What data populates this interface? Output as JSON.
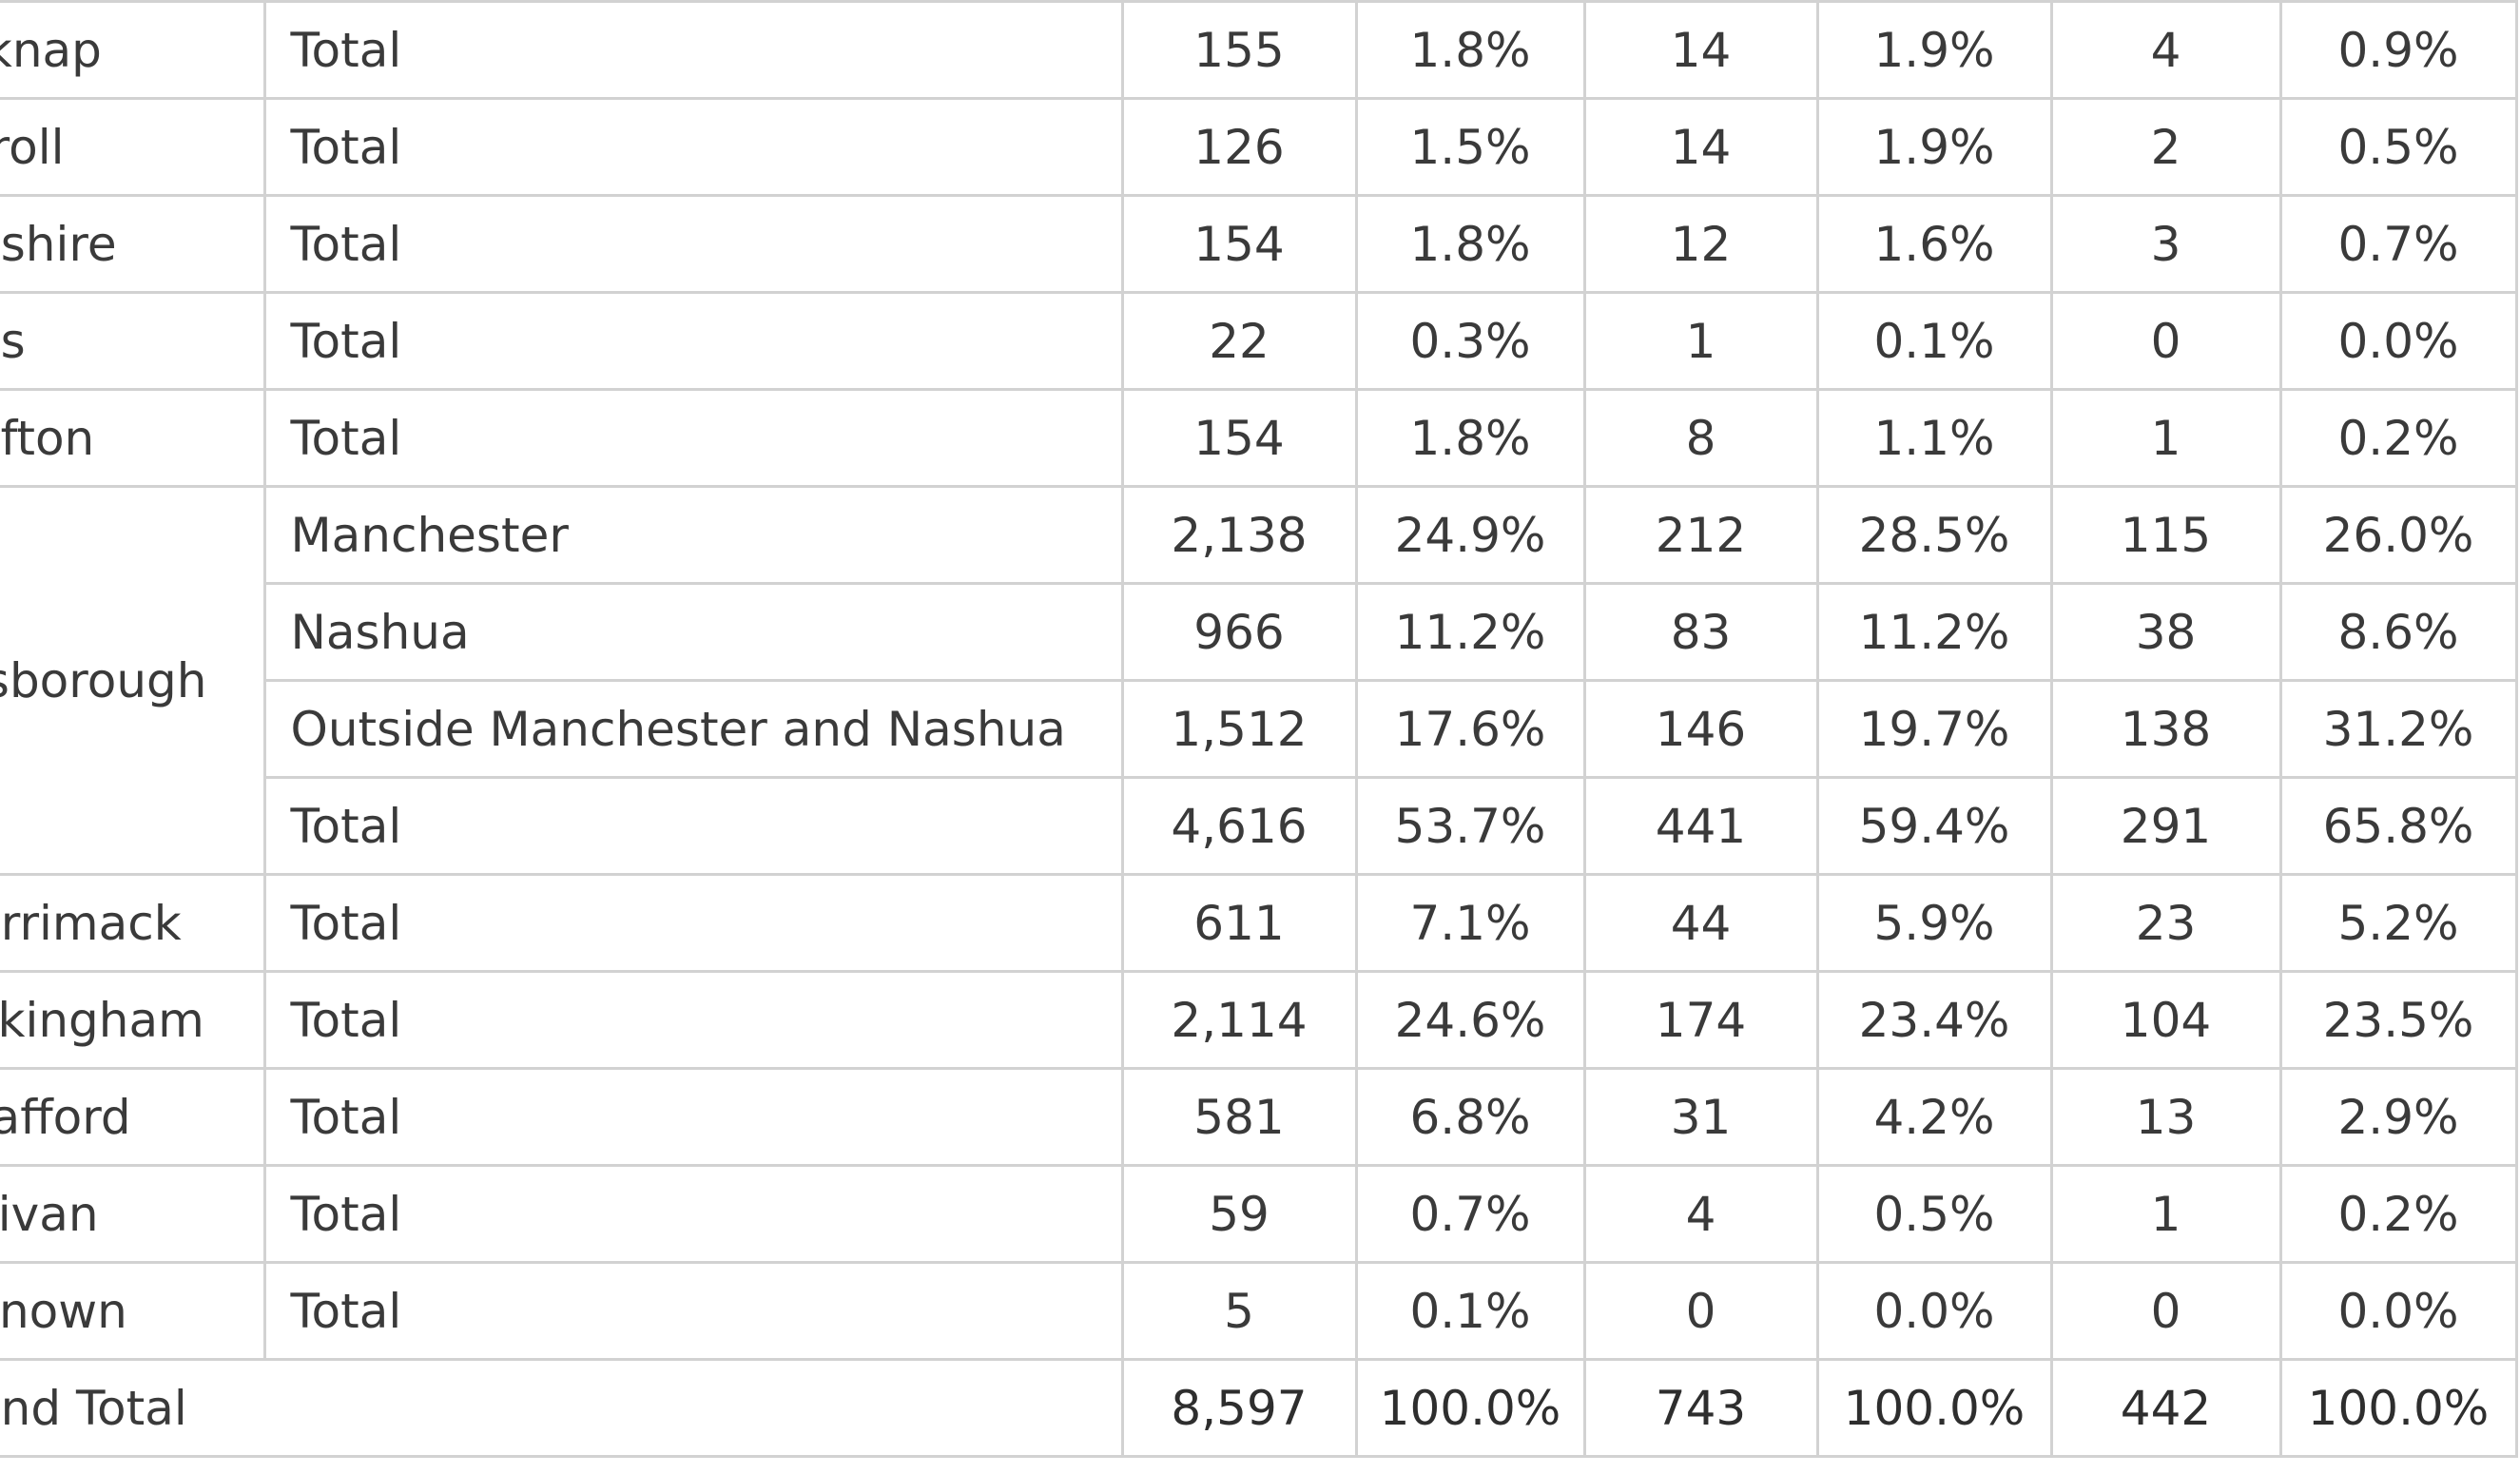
{
  "table": {
    "rows": [
      {
        "county": "lknap",
        "regions": [
          {
            "name": "Total",
            "values": [
              "155",
              "1.8%",
              "14",
              "1.9%",
              "4",
              "0.9%"
            ]
          }
        ]
      },
      {
        "county": "rroll",
        "regions": [
          {
            "name": "Total",
            "values": [
              "126",
              "1.5%",
              "14",
              "1.9%",
              "2",
              "0.5%"
            ]
          }
        ]
      },
      {
        "county": "eshire",
        "regions": [
          {
            "name": "Total",
            "values": [
              "154",
              "1.8%",
              "12",
              "1.6%",
              "3",
              "0.7%"
            ]
          }
        ]
      },
      {
        "county": "os",
        "regions": [
          {
            "name": "Total",
            "values": [
              "22",
              "0.3%",
              "1",
              "0.1%",
              "0",
              "0.0%"
            ]
          }
        ]
      },
      {
        "county": "afton",
        "regions": [
          {
            "name": "Total",
            "values": [
              "154",
              "1.8%",
              "8",
              "1.1%",
              "1",
              "0.2%"
            ]
          }
        ]
      },
      {
        "county": "lsborough",
        "regions": [
          {
            "name": "Manchester",
            "values": [
              "2,138",
              "24.9%",
              "212",
              "28.5%",
              "115",
              "26.0%"
            ]
          },
          {
            "name": "Nashua",
            "values": [
              "966",
              "11.2%",
              "83",
              "11.2%",
              "38",
              "8.6%"
            ]
          },
          {
            "name": "Outside Manchester and Nashua",
            "values": [
              "1,512",
              "17.6%",
              "146",
              "19.7%",
              "138",
              "31.2%"
            ]
          },
          {
            "name": "Total",
            "values": [
              "4,616",
              "53.7%",
              "441",
              "59.4%",
              "291",
              "65.8%"
            ]
          }
        ]
      },
      {
        "county": "errimack",
        "regions": [
          {
            "name": "Total",
            "values": [
              "611",
              "7.1%",
              "44",
              "5.9%",
              "23",
              "5.2%"
            ]
          }
        ]
      },
      {
        "county": "ckingham",
        "regions": [
          {
            "name": "Total",
            "values": [
              "2,114",
              "24.6%",
              "174",
              "23.4%",
              "104",
              "23.5%"
            ]
          }
        ]
      },
      {
        "county": "rafford",
        "regions": [
          {
            "name": "Total",
            "values": [
              "581",
              "6.8%",
              "31",
              "4.2%",
              "13",
              "2.9%"
            ]
          }
        ]
      },
      {
        "county": "llivan",
        "regions": [
          {
            "name": "Total",
            "values": [
              "59",
              "0.7%",
              "4",
              "0.5%",
              "1",
              "0.2%"
            ]
          }
        ]
      },
      {
        "county": "known",
        "regions": [
          {
            "name": "Total",
            "values": [
              "5",
              "0.1%",
              "0",
              "0.0%",
              "0",
              "0.0%"
            ]
          }
        ]
      }
    ],
    "grand_total": {
      "label": "and Total",
      "values": [
        "8,597",
        "100.0%",
        "743",
        "100.0%",
        "442",
        "100.0%"
      ]
    }
  }
}
